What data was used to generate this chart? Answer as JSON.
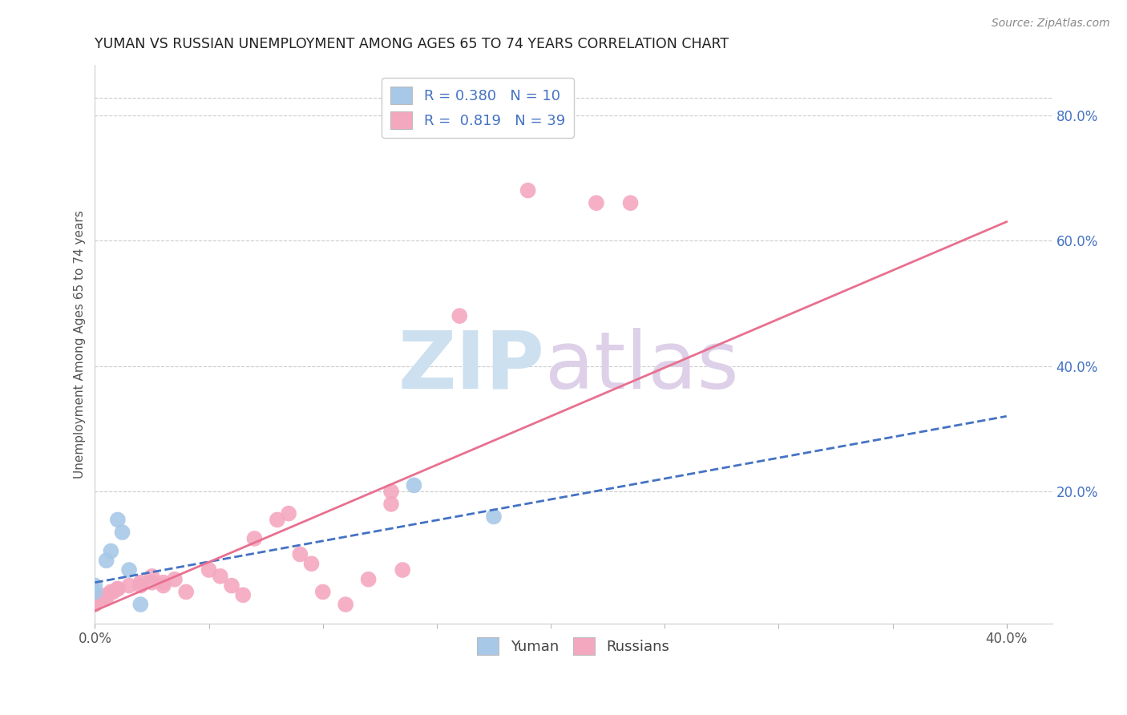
{
  "title": "YUMAN VS RUSSIAN UNEMPLOYMENT AMONG AGES 65 TO 74 YEARS CORRELATION CHART",
  "source": "Source: ZipAtlas.com",
  "ylabel": "Unemployment Among Ages 65 to 74 years",
  "xlim": [
    0.0,
    0.42
  ],
  "ylim": [
    -0.01,
    0.88
  ],
  "xticks": [
    0.0,
    0.4
  ],
  "xticklabels": [
    "0.0%",
    "40.0%"
  ],
  "yticks": [
    0.2,
    0.4,
    0.6,
    0.8
  ],
  "yticklabels": [
    "20.0%",
    "40.0%",
    "60.0%",
    "80.0%"
  ],
  "xticks_minor": [
    0.05,
    0.1,
    0.15,
    0.2,
    0.25,
    0.3,
    0.35
  ],
  "legend_yuman_label": "R = 0.380   N = 10",
  "legend_russian_label": "R =  0.819   N = 39",
  "yuman_color": "#a8c8e8",
  "russian_color": "#f4a8c0",
  "trendline_yuman_color": "#4472c4",
  "trendline_russian_color": "#e87090",
  "yuman_points": [
    [
      0.0,
      0.05
    ],
    [
      0.0,
      0.04
    ],
    [
      0.005,
      0.09
    ],
    [
      0.007,
      0.105
    ],
    [
      0.01,
      0.155
    ],
    [
      0.012,
      0.135
    ],
    [
      0.015,
      0.075
    ],
    [
      0.14,
      0.21
    ],
    [
      0.175,
      0.16
    ],
    [
      0.02,
      0.02
    ]
  ],
  "russian_points": [
    [
      0.0,
      0.02
    ],
    [
      0.0,
      0.025
    ],
    [
      0.0,
      0.03
    ],
    [
      0.002,
      0.03
    ],
    [
      0.003,
      0.03
    ],
    [
      0.005,
      0.035
    ],
    [
      0.005,
      0.03
    ],
    [
      0.007,
      0.04
    ],
    [
      0.008,
      0.04
    ],
    [
      0.01,
      0.045
    ],
    [
      0.01,
      0.045
    ],
    [
      0.015,
      0.05
    ],
    [
      0.02,
      0.055
    ],
    [
      0.02,
      0.05
    ],
    [
      0.025,
      0.055
    ],
    [
      0.025,
      0.065
    ],
    [
      0.03,
      0.055
    ],
    [
      0.03,
      0.05
    ],
    [
      0.035,
      0.06
    ],
    [
      0.04,
      0.04
    ],
    [
      0.05,
      0.075
    ],
    [
      0.055,
      0.065
    ],
    [
      0.06,
      0.05
    ],
    [
      0.065,
      0.035
    ],
    [
      0.07,
      0.125
    ],
    [
      0.08,
      0.155
    ],
    [
      0.085,
      0.165
    ],
    [
      0.09,
      0.1
    ],
    [
      0.095,
      0.085
    ],
    [
      0.1,
      0.04
    ],
    [
      0.11,
      0.02
    ],
    [
      0.12,
      0.06
    ],
    [
      0.13,
      0.2
    ],
    [
      0.13,
      0.18
    ],
    [
      0.135,
      0.075
    ],
    [
      0.16,
      0.48
    ],
    [
      0.19,
      0.68
    ],
    [
      0.22,
      0.66
    ],
    [
      0.235,
      0.66
    ]
  ],
  "yuman_trendline_x": [
    0.0,
    0.4
  ],
  "yuman_trendline_y": [
    0.055,
    0.32
  ],
  "russian_trendline_x": [
    0.0,
    0.4
  ],
  "russian_trendline_y": [
    0.01,
    0.63
  ]
}
